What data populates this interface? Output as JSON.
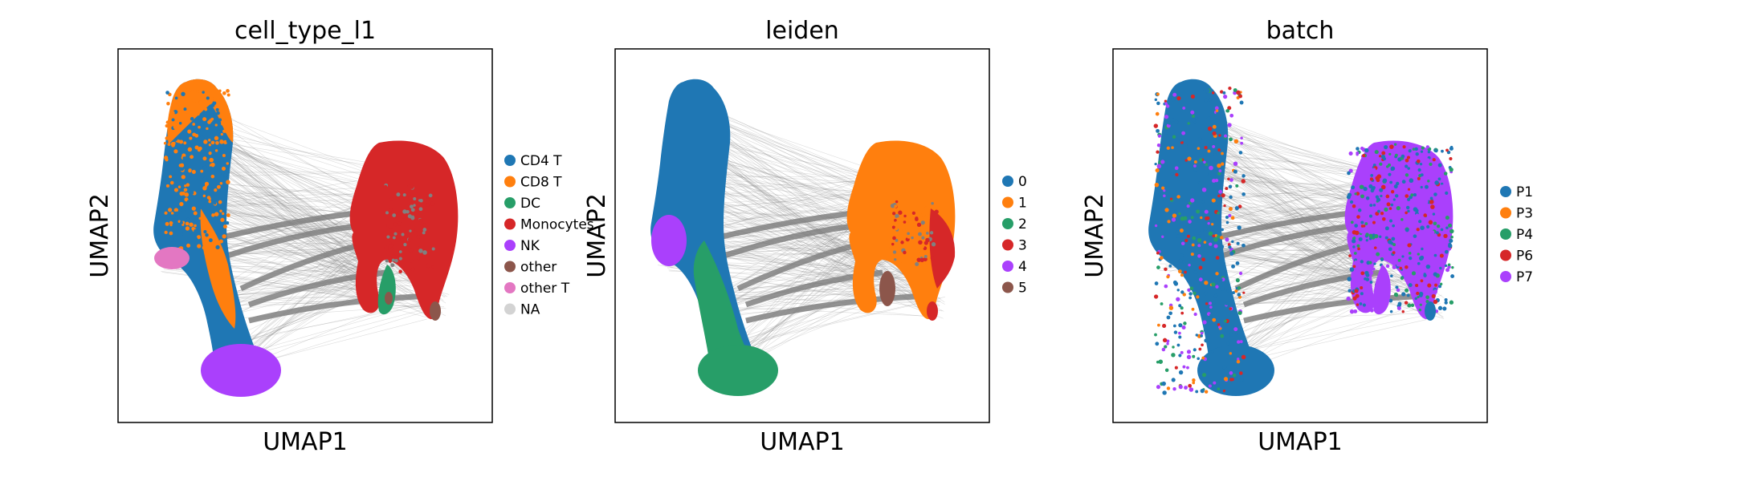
{
  "chart_data": [
    {
      "type": "scatter",
      "title": "cell_type_l1",
      "xlabel": "UMAP1",
      "ylabel": "UMAP2",
      "grid": false,
      "ticks": false,
      "legend_position": "right",
      "legend": [
        {
          "label": "CD4 T",
          "color": "#1f77b4"
        },
        {
          "label": "CD8 T",
          "color": "#ff7f0e"
        },
        {
          "label": "DC",
          "color": "#279e68"
        },
        {
          "label": "Monocytes",
          "color": "#d62728"
        },
        {
          "label": "NK",
          "color": "#aa40fc"
        },
        {
          "label": "other",
          "color": "#8c564b"
        },
        {
          "label": "other T",
          "color": "#e377c2"
        },
        {
          "label": "NA",
          "color": "#d3d3d3"
        }
      ]
    },
    {
      "type": "scatter",
      "title": "leiden",
      "xlabel": "UMAP1",
      "ylabel": "UMAP2",
      "grid": false,
      "ticks": false,
      "legend_position": "right",
      "legend": [
        {
          "label": "0",
          "color": "#1f77b4"
        },
        {
          "label": "1",
          "color": "#ff7f0e"
        },
        {
          "label": "2",
          "color": "#279e68"
        },
        {
          "label": "3",
          "color": "#d62728"
        },
        {
          "label": "4",
          "color": "#aa40fc"
        },
        {
          "label": "5",
          "color": "#8c564b"
        }
      ]
    },
    {
      "type": "scatter",
      "title": "batch",
      "xlabel": "UMAP1",
      "ylabel": "UMAP2",
      "grid": false,
      "ticks": false,
      "legend_position": "right",
      "legend": [
        {
          "label": "P1",
          "color": "#1f77b4"
        },
        {
          "label": "P3",
          "color": "#ff7f0e"
        },
        {
          "label": "P4",
          "color": "#279e68"
        },
        {
          "label": "P6",
          "color": "#d62728"
        },
        {
          "label": "P7",
          "color": "#aa40fc"
        }
      ]
    }
  ],
  "colors": {
    "edges": "#808080",
    "frame": "#000000"
  }
}
